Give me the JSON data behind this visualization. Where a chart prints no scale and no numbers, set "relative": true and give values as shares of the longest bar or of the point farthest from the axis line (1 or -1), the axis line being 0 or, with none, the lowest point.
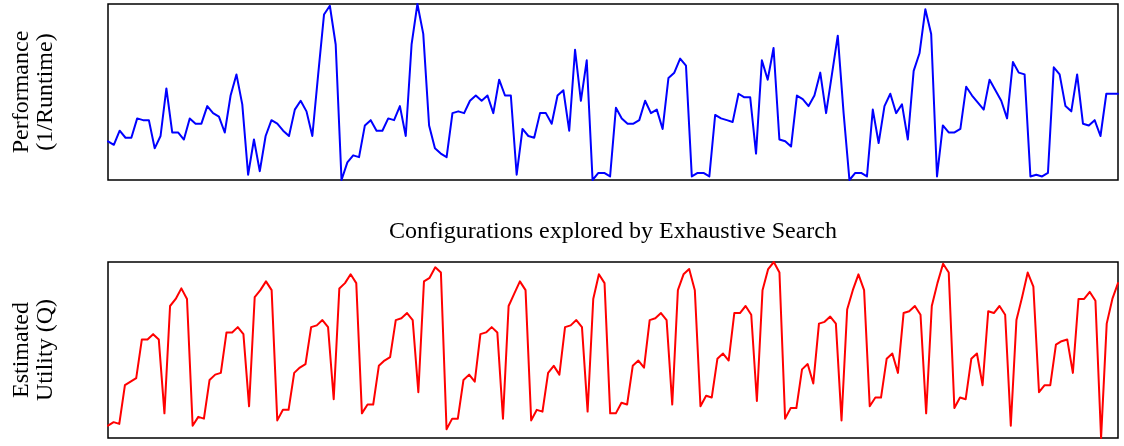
{
  "chart_data": [
    {
      "type": "line",
      "xlabel": "Configurations explored by Exhaustive Search",
      "ylabel": "Performance\n(1/Runtime)",
      "relative": true,
      "categories": [
        null,
        null,
        null,
        null,
        null,
        null,
        null,
        null,
        null,
        null,
        null,
        null,
        null,
        null,
        null,
        null,
        null,
        null,
        null,
        null,
        null,
        null,
        null,
        null,
        null,
        null,
        null,
        null,
        null,
        null,
        null,
        null,
        null,
        null,
        null,
        null,
        null,
        null,
        null,
        null,
        null,
        null,
        null,
        null,
        null,
        null,
        null,
        null,
        null,
        null,
        null,
        null,
        null,
        null,
        null,
        null,
        null,
        null,
        null,
        null,
        null,
        null,
        null,
        null,
        null,
        null,
        null,
        null,
        null,
        null,
        null,
        null,
        null,
        null,
        null,
        null,
        null,
        null,
        null,
        null,
        null,
        null,
        null,
        null,
        null,
        null,
        null,
        null,
        null,
        null,
        null,
        null,
        null,
        null,
        null,
        null,
        null,
        null,
        null,
        null,
        null,
        null,
        null,
        null,
        null,
        null,
        null,
        null,
        null,
        null,
        null,
        null,
        null,
        null,
        null,
        null,
        null,
        null,
        null,
        null,
        null,
        null,
        null,
        null,
        null,
        null,
        null,
        null,
        null,
        null,
        null,
        null,
        null,
        null,
        null,
        null,
        null,
        null,
        null,
        null,
        null,
        null,
        null,
        null,
        null,
        null,
        null,
        null,
        null,
        null,
        null,
        null,
        null,
        null,
        null,
        null,
        null,
        null,
        null,
        null,
        null,
        null,
        null,
        null,
        null,
        null,
        null,
        null,
        null,
        null,
        null,
        null,
        null,
        null
      ],
      "series": [
        {
          "color": "#0000ff",
          "values": [
            0.22,
            0.2,
            0.28,
            0.24,
            0.24,
            0.35,
            0.34,
            0.34,
            0.18,
            0.25,
            0.52,
            0.27,
            0.27,
            0.23,
            0.35,
            0.32,
            0.32,
            0.42,
            0.38,
            0.36,
            0.27,
            0.48,
            0.6,
            0.43,
            0.03,
            0.23,
            0.05,
            0.25,
            0.34,
            0.32,
            0.28,
            0.25,
            0.4,
            0.45,
            0.39,
            0.25,
            0.6,
            0.94,
            0.99,
            0.77,
            0,
            0.1,
            0.14,
            0.13,
            0.31,
            0.34,
            0.28,
            0.28,
            0.35,
            0.34,
            0.42,
            0.25,
            0.77,
            1,
            0.83,
            0.31,
            0.18,
            0.15,
            0.13,
            0.38,
            0.39,
            0.38,
            0.45,
            0.48,
            0.45,
            0.48,
            0.38,
            0.57,
            0.48,
            0.48,
            0.03,
            0.29,
            0.25,
            0.24,
            0.38,
            0.38,
            0.32,
            0.48,
            0.51,
            0.28,
            0.74,
            0.45,
            0.68,
            0,
            0.04,
            0.04,
            0.02,
            0.41,
            0.35,
            0.32,
            0.32,
            0.34,
            0.45,
            0.38,
            0.4,
            0.29,
            0.58,
            0.61,
            0.69,
            0.65,
            0.02,
            0.04,
            0.04,
            0.02,
            0.37,
            0.35,
            0.34,
            0.33,
            0.49,
            0.47,
            0.47,
            0.15,
            0.68,
            0.57,
            0.75,
            0.23,
            0.22,
            0.19,
            0.48,
            0.46,
            0.42,
            0.48,
            0.61,
            0.38,
            0.6,
            0.82,
            0.38,
            0,
            0.04,
            0.04,
            0.02,
            0.4,
            0.21,
            0.42,
            0.49,
            0.38,
            0.43,
            0.23,
            0.62,
            0.72,
            0.97,
            0.83,
            0.02,
            0.31,
            0.27,
            0.27,
            0.29,
            0.53,
            0.48,
            0.44,
            0.4,
            0.57,
            0.51,
            0.45,
            0.35,
            0.67,
            0.61,
            0.6,
            0.02,
            0.03,
            0.02,
            0.04,
            0.64,
            0.6,
            0.42,
            0.39,
            0.6,
            0.32,
            0.31,
            0.34,
            0.25,
            0.49,
            0.49,
            0.49
          ]
        }
      ]
    },
    {
      "type": "line",
      "ylabel": "Estimated\nUtility (Q)",
      "relative": true,
      "categories": [
        null,
        null,
        null,
        null,
        null,
        null,
        null,
        null,
        null,
        null,
        null,
        null,
        null,
        null,
        null,
        null,
        null,
        null,
        null,
        null,
        null,
        null,
        null,
        null,
        null,
        null,
        null,
        null,
        null,
        null,
        null,
        null,
        null,
        null,
        null,
        null,
        null,
        null,
        null,
        null,
        null,
        null,
        null,
        null,
        null,
        null,
        null,
        null,
        null,
        null,
        null,
        null,
        null,
        null,
        null,
        null,
        null,
        null,
        null,
        null,
        null,
        null,
        null,
        null,
        null,
        null,
        null,
        null,
        null,
        null,
        null,
        null,
        null,
        null,
        null,
        null,
        null,
        null,
        null,
        null,
        null,
        null,
        null,
        null,
        null,
        null,
        null,
        null,
        null,
        null,
        null,
        null,
        null,
        null,
        null,
        null,
        null,
        null,
        null,
        null,
        null,
        null,
        null,
        null,
        null,
        null,
        null,
        null,
        null,
        null,
        null,
        null,
        null,
        null,
        null,
        null,
        null,
        null,
        null,
        null,
        null,
        null,
        null,
        null,
        null,
        null,
        null,
        null,
        null,
        null,
        null,
        null,
        null,
        null,
        null,
        null,
        null,
        null,
        null,
        null,
        null,
        null,
        null,
        null,
        null,
        null,
        null,
        null,
        null,
        null,
        null,
        null,
        null,
        null,
        null,
        null,
        null,
        null,
        null,
        null,
        null,
        null,
        null,
        null,
        null,
        null,
        null,
        null,
        null,
        null,
        null,
        null,
        null,
        null,
        null,
        null,
        null,
        null,
        null,
        null
      ],
      "series": [
        {
          "color": "#ff0000",
          "values": [
            0.07,
            0.09,
            0.08,
            0.3,
            0.32,
            0.34,
            0.56,
            0.56,
            0.59,
            0.56,
            0.14,
            0.75,
            0.79,
            0.85,
            0.79,
            0.07,
            0.12,
            0.11,
            0.33,
            0.36,
            0.37,
            0.6,
            0.6,
            0.63,
            0.59,
            0.18,
            0.8,
            0.84,
            0.89,
            0.84,
            0.1,
            0.16,
            0.16,
            0.37,
            0.4,
            0.42,
            0.63,
            0.64,
            0.67,
            0.63,
            0.22,
            0.85,
            0.88,
            0.93,
            0.88,
            0.14,
            0.19,
            0.19,
            0.41,
            0.44,
            0.46,
            0.67,
            0.68,
            0.71,
            0.67,
            0.26,
            0.89,
            0.91,
            0.97,
            0.94,
            0.05,
            0.11,
            0.11,
            0.33,
            0.36,
            0.32,
            0.59,
            0.6,
            0.63,
            0.6,
            0.11,
            0.75,
            0.82,
            0.89,
            0.84,
            0.1,
            0.16,
            0.15,
            0.37,
            0.41,
            0.36,
            0.63,
            0.64,
            0.67,
            0.63,
            0.15,
            0.79,
            0.93,
            0.88,
            0.14,
            0.14,
            0.2,
            0.19,
            0.41,
            0.44,
            0.4,
            0.67,
            0.68,
            0.71,
            0.67,
            0.19,
            0.84,
            0.93,
            0.96,
            0.84,
            0.18,
            0.24,
            0.23,
            0.45,
            0.48,
            0.44,
            0.71,
            0.71,
            0.75,
            0.7,
            0.21,
            0.84,
            0.96,
            1,
            0.94,
            0.11,
            0.17,
            0.17,
            0.39,
            0.42,
            0.31,
            0.65,
            0.66,
            0.69,
            0.65,
            0.1,
            0.73,
            0.84,
            0.93,
            0.84,
            0.18,
            0.23,
            0.23,
            0.45,
            0.48,
            0.37,
            0.71,
            0.72,
            0.75,
            0.7,
            0.14,
            0.75,
            0.88,
            0.99,
            0.94,
            0.17,
            0.23,
            0.22,
            0.45,
            0.48,
            0.3,
            0.72,
            0.71,
            0.75,
            0.7,
            0.07,
            0.67,
            0.8,
            0.94,
            0.86,
            0.26,
            0.3,
            0.3,
            0.53,
            0.55,
            0.56,
            0.37,
            0.79,
            0.79,
            0.83,
            0.78,
            0,
            0.65,
            0.79,
            0.88
          ]
        }
      ]
    }
  ]
}
